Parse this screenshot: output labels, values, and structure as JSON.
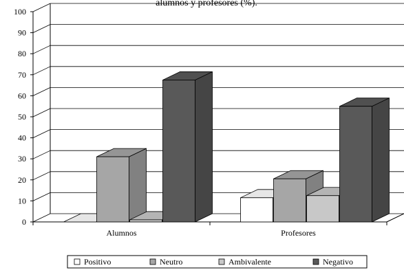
{
  "chart_data": {
    "type": "bar",
    "title": "alumnos y profesores (%).",
    "xlabel": "",
    "ylabel": "",
    "categories": [
      "Alumnos",
      "Profesores"
    ],
    "series": [
      {
        "name": "Positivo",
        "values": [
          0,
          11.5
        ],
        "color": "#ffffff"
      },
      {
        "name": "Neutro",
        "values": [
          31,
          20.5
        ],
        "color": "#a6a6a6"
      },
      {
        "name": "Ambivalente",
        "values": [
          1,
          12.5
        ],
        "color": "#c8c8c8"
      },
      {
        "name": "Negativo",
        "values": [
          67.5,
          55
        ],
        "color": "#595959"
      }
    ],
    "ylim": [
      0,
      100
    ],
    "yticks": [
      "0",
      "10",
      "20",
      "30",
      "40",
      "50",
      "60",
      "70",
      "80",
      "90",
      "100"
    ],
    "grid": true,
    "legend_position": "bottom",
    "style": "3d-bar"
  }
}
